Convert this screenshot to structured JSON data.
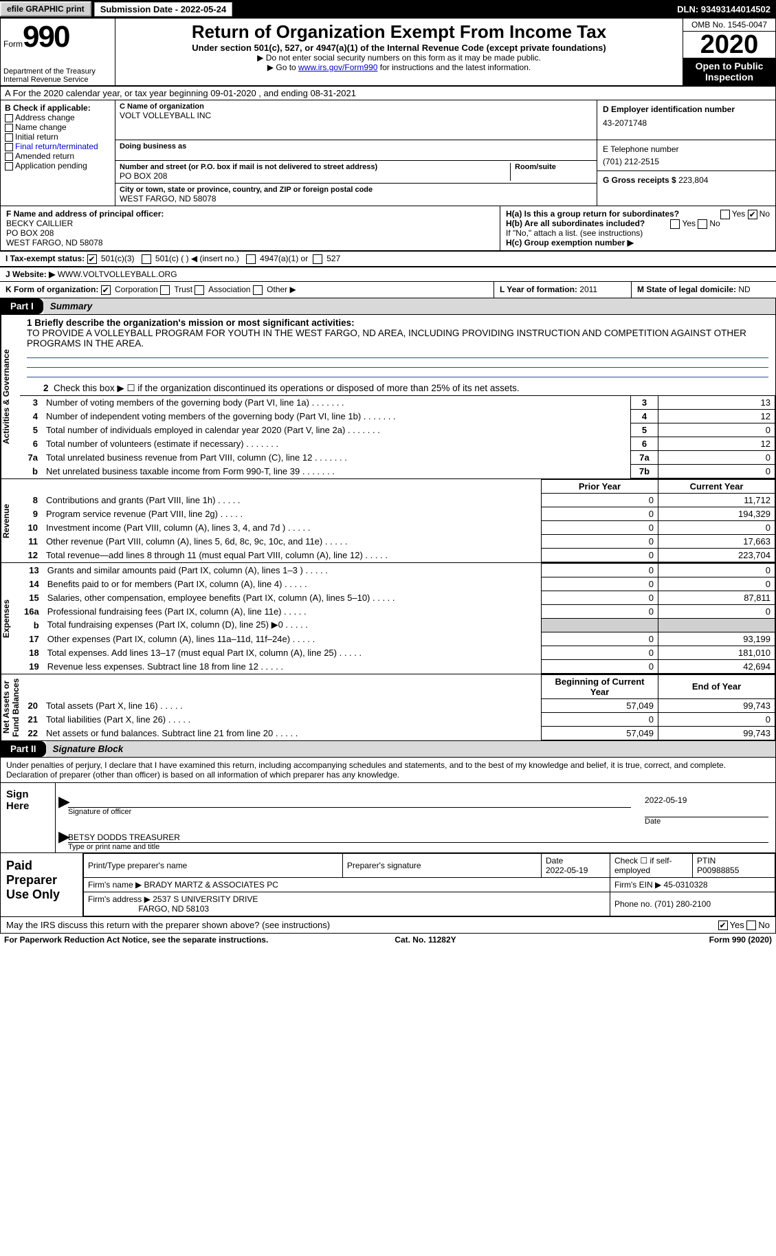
{
  "topbar": {
    "efile": "efile GRAPHIC print",
    "submission": "Submission Date - 2022-05-24",
    "dln": "DLN: 93493144014502"
  },
  "header": {
    "form_word": "Form",
    "form_num": "990",
    "dept": "Department of the Treasury\nInternal Revenue Service",
    "title": "Return of Organization Exempt From Income Tax",
    "subtitle": "Under section 501(c), 527, or 4947(a)(1) of the Internal Revenue Code (except private foundations)",
    "note1": "▶ Do not enter social security numbers on this form as it may be made public.",
    "note2_pre": "▶ Go to ",
    "note2_link": "www.irs.gov/Form990",
    "note2_post": " for instructions and the latest information.",
    "omb": "OMB No. 1545-0047",
    "year": "2020",
    "open": "Open to Public Inspection"
  },
  "row_a": "A For the 2020 calendar year, or tax year beginning 09-01-2020   , and ending 08-31-2021",
  "col_b": {
    "title": "B Check if applicable:",
    "opts": [
      "Address change",
      "Name change",
      "Initial return",
      "Final return/terminated",
      "Amended return",
      "Application pending"
    ]
  },
  "col_c": {
    "name_lbl": "C Name of organization",
    "name": "VOLT VOLLEYBALL INC",
    "dba_lbl": "Doing business as",
    "addr_lbl": "Number and street (or P.O. box if mail is not delivered to street address)",
    "addr": "PO BOX 208",
    "room_lbl": "Room/suite",
    "city_lbl": "City or town, state or province, country, and ZIP or foreign postal code",
    "city": "WEST FARGO, ND  58078"
  },
  "col_d": {
    "ein_lbl": "D Employer identification number",
    "ein": "43-2071748",
    "tel_lbl": "E Telephone number",
    "tel": "(701) 212-2515",
    "gross_lbl": "G Gross receipts $",
    "gross": "223,804"
  },
  "row_f": {
    "lbl": "F  Name and address of principal officer:",
    "name": "BECKY CAILLIER",
    "addr1": "PO BOX 208",
    "addr2": "WEST FARGO, ND  58078"
  },
  "row_h": {
    "ha": "H(a)  Is this a group return for subordinates?",
    "hb": "H(b)  Are all subordinates included?",
    "hb_note": "If \"No,\" attach a list. (see instructions)",
    "hc": "H(c)  Group exemption number ▶"
  },
  "row_i": {
    "lbl": "I   Tax-exempt status:",
    "o1": "501(c)(3)",
    "o2": "501(c) (  ) ◀ (insert no.)",
    "o3": "4947(a)(1) or",
    "o4": "527"
  },
  "row_j": {
    "lbl": "J   Website: ▶",
    "val": "WWW.VOLTVOLLEYBALL.ORG"
  },
  "row_k": {
    "lbl": "K Form of organization:",
    "opts": [
      "Corporation",
      "Trust",
      "Association",
      "Other ▶"
    ],
    "l_lbl": "L Year of formation:",
    "l_val": "2011",
    "m_lbl": "M State of legal domicile:",
    "m_val": "ND"
  },
  "part1": {
    "tab": "Part I",
    "title": "Summary"
  },
  "sidecaps": {
    "gov": "Activities & Governance",
    "rev": "Revenue",
    "exp": "Expenses",
    "net": "Net Assets or\nFund Balances"
  },
  "mission": {
    "lbl": "1   Briefly describe the organization's mission or most significant activities:",
    "text": "TO PROVIDE A VOLLEYBALL PROGRAM FOR YOUTH IN THE WEST FARGO, ND AREA, INCLUDING PROVIDING INSTRUCTION AND COMPETITION AGAINST OTHER PROGRAMS IN THE AREA."
  },
  "q2": "Check this box ▶ ☐  if the organization discontinued its operations or disposed of more than 25% of its net assets.",
  "gov_rows": [
    {
      "n": "3",
      "t": "Number of voting members of the governing body (Part VI, line 1a)",
      "box": "3",
      "v": "13"
    },
    {
      "n": "4",
      "t": "Number of independent voting members of the governing body (Part VI, line 1b)",
      "box": "4",
      "v": "12"
    },
    {
      "n": "5",
      "t": "Total number of individuals employed in calendar year 2020 (Part V, line 2a)",
      "box": "5",
      "v": "0"
    },
    {
      "n": "6",
      "t": "Total number of volunteers (estimate if necessary)",
      "box": "6",
      "v": "12"
    },
    {
      "n": "7a",
      "t": "Total unrelated business revenue from Part VIII, column (C), line 12",
      "box": "7a",
      "v": "0"
    },
    {
      "n": "b",
      "t": "Net unrelated business taxable income from Form 990-T, line 39",
      "box": "7b",
      "v": "0"
    }
  ],
  "fin_hdr": {
    "py": "Prior Year",
    "cy": "Current Year"
  },
  "rev_rows": [
    {
      "n": "8",
      "t": "Contributions and grants (Part VIII, line 1h)",
      "py": "0",
      "cy": "11,712"
    },
    {
      "n": "9",
      "t": "Program service revenue (Part VIII, line 2g)",
      "py": "0",
      "cy": "194,329"
    },
    {
      "n": "10",
      "t": "Investment income (Part VIII, column (A), lines 3, 4, and 7d )",
      "py": "0",
      "cy": "0"
    },
    {
      "n": "11",
      "t": "Other revenue (Part VIII, column (A), lines 5, 6d, 8c, 9c, 10c, and 11e)",
      "py": "0",
      "cy": "17,663"
    },
    {
      "n": "12",
      "t": "Total revenue—add lines 8 through 11 (must equal Part VIII, column (A), line 12)",
      "py": "0",
      "cy": "223,704"
    }
  ],
  "exp_rows": [
    {
      "n": "13",
      "t": "Grants and similar amounts paid (Part IX, column (A), lines 1–3 )",
      "py": "0",
      "cy": "0"
    },
    {
      "n": "14",
      "t": "Benefits paid to or for members (Part IX, column (A), line 4)",
      "py": "0",
      "cy": "0"
    },
    {
      "n": "15",
      "t": "Salaries, other compensation, employee benefits (Part IX, column (A), lines 5–10)",
      "py": "0",
      "cy": "87,811"
    },
    {
      "n": "16a",
      "t": "Professional fundraising fees (Part IX, column (A), line 11e)",
      "py": "0",
      "cy": "0"
    },
    {
      "n": "b",
      "t": "Total fundraising expenses (Part IX, column (D), line 25) ▶0",
      "py": "",
      "cy": "",
      "shade": true
    },
    {
      "n": "17",
      "t": "Other expenses (Part IX, column (A), lines 11a–11d, 11f–24e)",
      "py": "0",
      "cy": "93,199"
    },
    {
      "n": "18",
      "t": "Total expenses. Add lines 13–17 (must equal Part IX, column (A), line 25)",
      "py": "0",
      "cy": "181,010"
    },
    {
      "n": "19",
      "t": "Revenue less expenses. Subtract line 18 from line 12",
      "py": "0",
      "cy": "42,694"
    }
  ],
  "net_hdr": {
    "py": "Beginning of Current Year",
    "cy": "End of Year"
  },
  "net_rows": [
    {
      "n": "20",
      "t": "Total assets (Part X, line 16)",
      "py": "57,049",
      "cy": "99,743"
    },
    {
      "n": "21",
      "t": "Total liabilities (Part X, line 26)",
      "py": "0",
      "cy": "0"
    },
    {
      "n": "22",
      "t": "Net assets or fund balances. Subtract line 21 from line 20",
      "py": "57,049",
      "cy": "99,743"
    }
  ],
  "part2": {
    "tab": "Part II",
    "title": "Signature Block"
  },
  "penalties": "Under penalties of perjury, I declare that I have examined this return, including accompanying schedules and statements, and to the best of my knowledge and belief, it is true, correct, and complete. Declaration of preparer (other than officer) is based on all information of which preparer has any knowledge.",
  "sign": {
    "here": "Sign Here",
    "sig_lbl": "Signature of officer",
    "date": "2022-05-19",
    "date_lbl": "Date",
    "name": "BETSY DODDS  TREASURER",
    "name_lbl": "Type or print name and title"
  },
  "paid": {
    "here": "Paid Preparer Use Only",
    "h1": "Print/Type preparer's name",
    "h2": "Preparer's signature",
    "h3": "Date",
    "h4": "Check ☐ if self-employed",
    "h5": "PTIN",
    "date": "2022-05-19",
    "ptin": "P00988855",
    "firm_lbl": "Firm's name   ▶",
    "firm": "BRADY MARTZ & ASSOCIATES PC",
    "ein_lbl": "Firm's EIN ▶",
    "ein": "45-0310328",
    "addr_lbl": "Firm's address ▶",
    "addr1": "2537 S UNIVERSITY DRIVE",
    "addr2": "FARGO, ND  58103",
    "phone_lbl": "Phone no.",
    "phone": "(701) 280-2100"
  },
  "discuss": "May the IRS discuss this return with the preparer shown above? (see instructions)",
  "footer": {
    "l": "For Paperwork Reduction Act Notice, see the separate instructions.",
    "c": "Cat. No. 11282Y",
    "r": "Form 990 (2020)"
  },
  "yn": {
    "yes": "Yes",
    "no": "No"
  },
  "colors": {
    "link": "#0000cc",
    "hdr": "#000000",
    "shade": "#d9d9d9"
  }
}
